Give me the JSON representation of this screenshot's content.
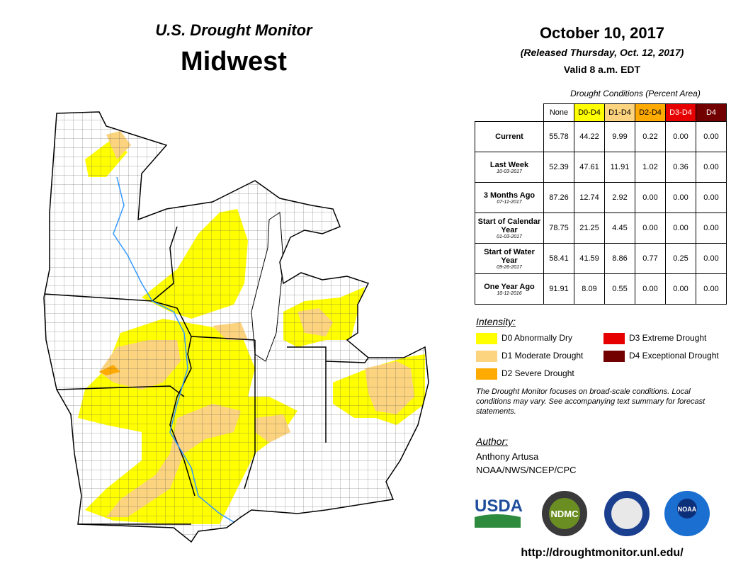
{
  "header": {
    "subtitle": "U.S. Drought Monitor",
    "title": "Midwest",
    "date": "October 10, 2017",
    "released": "(Released Thursday, Oct. 12, 2017)",
    "valid": "Valid 8 a.m. EDT"
  },
  "table": {
    "caption": "Drought Conditions (Percent Area)",
    "columns": [
      "None",
      "D0-D4",
      "D1-D4",
      "D2-D4",
      "D3-D4",
      "D4"
    ],
    "column_colors": [
      "#ffffff",
      "#ffff00",
      "#fcd37f",
      "#ffaa00",
      "#e60000",
      "#730000"
    ],
    "rows": [
      {
        "label": "Current",
        "values": [
          "55.78",
          "44.22",
          "9.99",
          "0.22",
          "0.00",
          "0.00"
        ]
      },
      {
        "label": "Last Week",
        "date": "10-03-2017",
        "values": [
          "52.39",
          "47.61",
          "11.91",
          "1.02",
          "0.36",
          "0.00"
        ]
      },
      {
        "label": "3 Months Ago",
        "date": "07-11-2017",
        "values": [
          "87.26",
          "12.74",
          "2.92",
          "0.00",
          "0.00",
          "0.00"
        ]
      },
      {
        "label": "Start of Calendar Year",
        "date": "01-03-2017",
        "values": [
          "78.75",
          "21.25",
          "4.45",
          "0.00",
          "0.00",
          "0.00"
        ]
      },
      {
        "label": "Start of Water Year",
        "date": "09-26-2017",
        "values": [
          "58.41",
          "41.59",
          "8.86",
          "0.77",
          "0.25",
          "0.00"
        ]
      },
      {
        "label": "One Year Ago",
        "date": "10-11-2016",
        "values": [
          "91.91",
          "8.09",
          "0.55",
          "0.00",
          "0.00",
          "0.00"
        ]
      }
    ]
  },
  "legend": {
    "title": "Intensity:",
    "items": [
      {
        "label": "D0 Abnormally Dry",
        "color": "#ffff00"
      },
      {
        "label": "D1 Moderate Drought",
        "color": "#fcd37f"
      },
      {
        "label": "D2 Severe Drought",
        "color": "#ffaa00"
      },
      {
        "label": "D3 Extreme Drought",
        "color": "#e60000"
      },
      {
        "label": "D4 Exceptional Drought",
        "color": "#730000"
      }
    ]
  },
  "note": "The Drought Monitor focuses on broad-scale conditions. Local conditions may vary. See accompanying text summary for forecast statements.",
  "author": {
    "title": "Author:",
    "name": "Anthony Artusa",
    "org": "NOAA/NWS/NCEP/CPC"
  },
  "logos": [
    "USDA",
    "NDMC",
    "NOAA"
  ],
  "url": "http://droughtmonitor.unl.edu/"
}
